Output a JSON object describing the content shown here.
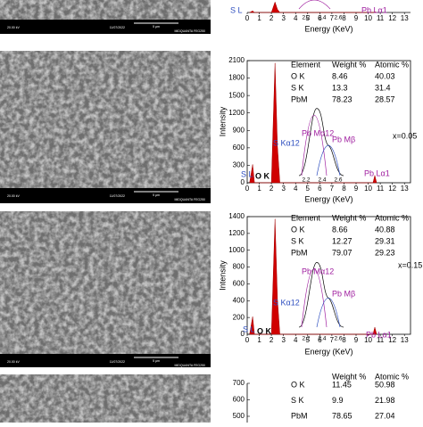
{
  "sem_bar": {
    "scale": "5 μm",
    "instrument": "MIDQUANTA FEG250",
    "date": "11/07/2022",
    "voltage": "20.00 kV"
  },
  "panels": [
    {
      "x_label": "Energy (KeV)",
      "xticks": [
        0,
        1,
        2,
        3,
        4,
        5,
        6,
        7,
        8,
        9,
        10,
        11,
        12,
        13
      ],
      "annotations": [
        "S L",
        "Pb Lα1"
      ],
      "inset_ticks": [
        "2.2",
        "2.4",
        "2.6"
      ]
    },
    {
      "x_label": "Energy (KeV)",
      "y_label": "Intensity",
      "xticks": [
        0,
        1,
        2,
        3,
        4,
        5,
        6,
        7,
        8,
        9,
        10,
        11,
        12,
        13
      ],
      "yticks": [
        0,
        300,
        600,
        900,
        1200,
        1500,
        1800,
        2100
      ],
      "table": {
        "header": [
          "Element",
          "Weight %",
          "Atomic %"
        ],
        "rows": [
          [
            "O K",
            "8.46",
            "40.03"
          ],
          [
            "S K",
            "13.3",
            "31.4"
          ],
          [
            "PbM",
            "78.23",
            "28.57"
          ]
        ]
      },
      "composition": "x=0.05",
      "annotations": [
        "Pb Mα12",
        "Pb Mβ",
        "S Kα12",
        "S L",
        "O K",
        "Pb Lα1"
      ],
      "inset_ticks": [
        "2.2",
        "2.4",
        "2.6"
      ]
    },
    {
      "x_label": "Energy (KeV)",
      "y_label": "Intensity",
      "xticks": [
        0,
        1,
        2,
        3,
        4,
        5,
        6,
        7,
        8,
        9,
        10,
        11,
        12,
        13
      ],
      "yticks": [
        0,
        200,
        400,
        600,
        800,
        1000,
        1200,
        1400
      ],
      "table": {
        "header": [
          "Element",
          "Weight %",
          "Atomic %"
        ],
        "rows": [
          [
            "O K",
            "8.66",
            "40.88"
          ],
          [
            "S K",
            "12.27",
            "29.31"
          ],
          [
            "PbM",
            "79.07",
            "29.23"
          ]
        ]
      },
      "composition": "x=0.15",
      "annotations": [
        "Pb Mα12",
        "Pb Mβ",
        "S Kα12",
        "S L",
        "O K",
        "Pb Lα1"
      ],
      "inset_ticks": [
        "2.2",
        "2.4",
        "2.6"
      ]
    },
    {
      "yticks": [
        500,
        600,
        700
      ],
      "table": {
        "header": [
          "Weight %",
          "Atomic %"
        ],
        "rows": [
          [
            "O K",
            "11.45",
            "50.98"
          ],
          [
            "S K",
            "9.9",
            "21.98"
          ],
          [
            "PbM",
            "78.65",
            "27.04"
          ]
        ]
      }
    }
  ]
}
